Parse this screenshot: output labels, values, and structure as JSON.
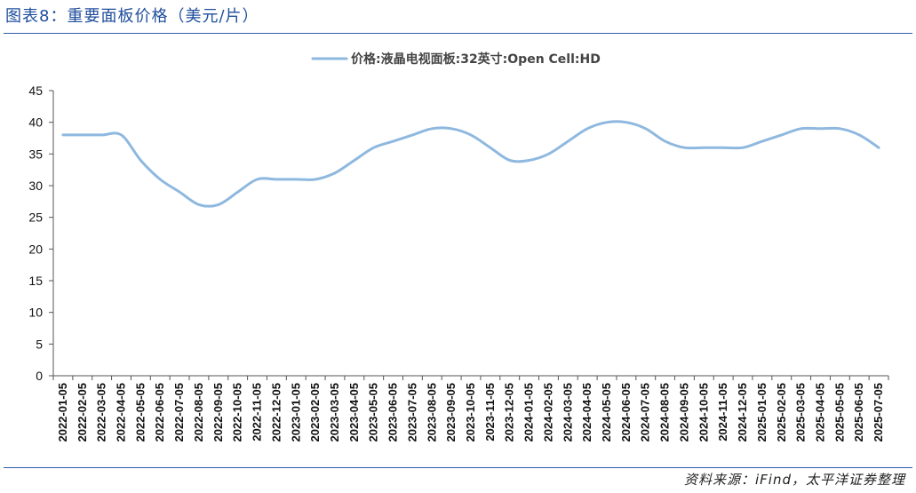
{
  "figure": {
    "title": "图表8：重要面板价格（美元/片）",
    "source": "资料来源：iFind，太平洋证券整理"
  },
  "colors": {
    "line": "#8eb8df",
    "accent": "#1f4e9c",
    "axis": "#555555"
  },
  "chart_data": {
    "type": "line",
    "title": "",
    "xlabel": "",
    "ylabel": "",
    "ylim": [
      0,
      45
    ],
    "yticks": [
      0,
      5,
      10,
      15,
      20,
      25,
      30,
      35,
      40,
      45
    ],
    "legend_position": "top-center",
    "categories": [
      "2022-01-05",
      "2022-02-05",
      "2022-03-05",
      "2022-04-05",
      "2022-05-05",
      "2022-06-05",
      "2022-07-05",
      "2022-08-05",
      "2022-09-05",
      "2022-10-05",
      "2022-11-05",
      "2022-12-05",
      "2023-01-05",
      "2023-02-05",
      "2023-03-05",
      "2023-04-05",
      "2023-05-05",
      "2023-06-05",
      "2023-07-05",
      "2023-08-05",
      "2023-09-05",
      "2023-10-05",
      "2023-11-05",
      "2023-12-05",
      "2024-01-05",
      "2024-02-05",
      "2024-03-05",
      "2024-04-05",
      "2024-05-05",
      "2024-06-05",
      "2024-07-05",
      "2024-08-05",
      "2024-09-05",
      "2024-10-05",
      "2024-11-05",
      "2024-12-05",
      "2025-01-05",
      "2025-02-05",
      "2025-03-05",
      "2025-04-05",
      "2025-05-05",
      "2025-06-05",
      "2025-07-05"
    ],
    "series": [
      {
        "name": "价格:液晶电视面板:32英寸:Open Cell:HD",
        "values": [
          38,
          38,
          38,
          38,
          34,
          31,
          29,
          27,
          27,
          29,
          31,
          31,
          31,
          31,
          32,
          34,
          36,
          37,
          38,
          39,
          39,
          38,
          36,
          34,
          34,
          35,
          37,
          39,
          40,
          40,
          39,
          37,
          36,
          36,
          36,
          36,
          37,
          38,
          39,
          39,
          39,
          38,
          36
        ]
      }
    ]
  }
}
